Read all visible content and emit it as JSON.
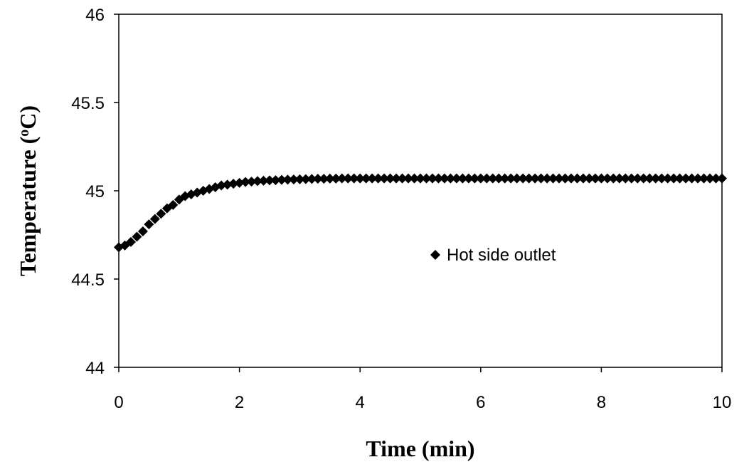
{
  "chart_data": {
    "type": "scatter",
    "title": "",
    "xlabel": "Time (min)",
    "ylabel_main": "Temperature (",
    "ylabel_sup": "o",
    "ylabel_unit": "C)",
    "xlim": [
      0,
      10
    ],
    "ylim": [
      44,
      46
    ],
    "xticks": [
      0,
      2,
      4,
      6,
      8,
      10
    ],
    "xtick_labels": [
      "0",
      "2",
      "4",
      "6",
      "8",
      "10"
    ],
    "yticks": [
      44,
      44.5,
      45,
      45.5,
      46
    ],
    "ytick_labels": [
      "44",
      "44.5",
      "45",
      "45.5",
      "46"
    ],
    "grid": false,
    "legend_position": "center-right",
    "series": [
      {
        "name": "Hot side outlet",
        "marker": "diamond",
        "color": "#000000",
        "x_start": 0,
        "x_step": 0.1,
        "values": [
          44.68,
          44.69,
          44.71,
          44.74,
          44.77,
          44.81,
          44.84,
          44.87,
          44.9,
          44.92,
          44.95,
          44.97,
          44.98,
          44.99,
          45.0,
          45.01,
          45.02,
          45.03,
          45.035,
          45.04,
          45.045,
          45.05,
          45.052,
          45.055,
          45.057,
          45.059,
          45.06,
          45.062,
          45.063,
          45.064,
          45.065,
          45.066,
          45.067,
          45.068,
          45.068,
          45.069,
          45.069,
          45.07,
          45.07,
          45.07,
          45.07,
          45.07,
          45.07,
          45.07,
          45.07,
          45.07,
          45.07,
          45.07,
          45.07,
          45.07,
          45.07,
          45.07,
          45.07,
          45.07,
          45.07,
          45.07,
          45.07,
          45.07,
          45.07,
          45.07,
          45.07,
          45.07,
          45.07,
          45.07,
          45.07,
          45.07,
          45.07,
          45.07,
          45.07,
          45.07,
          45.07,
          45.07,
          45.07,
          45.07,
          45.07,
          45.07,
          45.07,
          45.07,
          45.07,
          45.07,
          45.07,
          45.07,
          45.07,
          45.07,
          45.07,
          45.07,
          45.07,
          45.07,
          45.07,
          45.07,
          45.07,
          45.07,
          45.07,
          45.07,
          45.07,
          45.07,
          45.07,
          45.07,
          45.07,
          45.07,
          45.07
        ]
      }
    ]
  }
}
